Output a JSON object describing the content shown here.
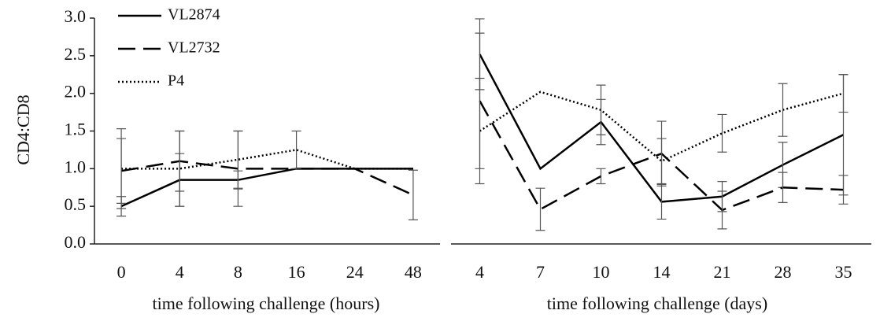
{
  "chart_data": [
    {
      "type": "line",
      "y_label": "CD4:CD8",
      "x_label": "time following challenge (hours)",
      "categories": [
        "0",
        "4",
        "8",
        "16",
        "24",
        "48"
      ],
      "ylim": [
        0,
        3
      ],
      "yticks": [
        {
          "value": 0,
          "label": "0.0"
        },
        0.5,
        {
          "value": 1,
          "label": "1.0"
        },
        1.5,
        {
          "value": 2,
          "label": "2.0"
        },
        2.5,
        {
          "value": 3,
          "label": "3.0"
        }
      ],
      "legend": "upper left",
      "series": [
        {
          "name": "VL2874",
          "color": "#000000",
          "linestyle": "solid",
          "values": [
            0.5,
            0.85,
            0.85,
            1.0,
            1.0,
            1.0
          ],
          "errors": [
            0.13,
            0.35,
            0.12,
            null,
            null,
            null
          ]
        },
        {
          "name": "VL2732",
          "color": "#000000",
          "linestyle": "dashed",
          "values": [
            0.97,
            1.1,
            1.0,
            1.0,
            1.0,
            0.65
          ],
          "errors": [
            0.43,
            0.4,
            0.5,
            null,
            null,
            0.33
          ]
        },
        {
          "name": "P4",
          "color": "#000000",
          "linestyle": "dotted",
          "values": [
            1.0,
            1.0,
            1.12,
            1.25,
            1.0,
            1.0
          ],
          "errors": [
            0.53,
            0.5,
            0.38,
            0.25,
            null,
            null
          ]
        }
      ]
    },
    {
      "type": "line",
      "x_label": "time following challenge (days)",
      "categories": [
        "4",
        "7",
        "10",
        "14",
        "21",
        "28",
        "35"
      ],
      "ylim": [
        0,
        3
      ],
      "series": [
        {
          "color": "#000000",
          "linestyle": "solid",
          "values": [
            2.52,
            1.0,
            1.62,
            0.56,
            0.63,
            1.05,
            1.45
          ],
          "errors": [
            0.47,
            null,
            0.3,
            0.23,
            0.2,
            0.3,
            0.8
          ]
        },
        {
          "color": "#000000",
          "linestyle": "dashed",
          "values": [
            1.9,
            0.46,
            0.9,
            1.2,
            0.45,
            0.75,
            0.72
          ],
          "errors": [
            0.9,
            0.28,
            0.1,
            0.43,
            0.25,
            0.2,
            0.19
          ]
        },
        {
          "color": "#000000",
          "linestyle": "dotted",
          "values": [
            1.5,
            2.02,
            1.78,
            1.1,
            1.47,
            1.78,
            2.0
          ],
          "errors": [
            0.7,
            null,
            0.33,
            0.3,
            0.25,
            0.35,
            0.25
          ]
        }
      ]
    }
  ]
}
